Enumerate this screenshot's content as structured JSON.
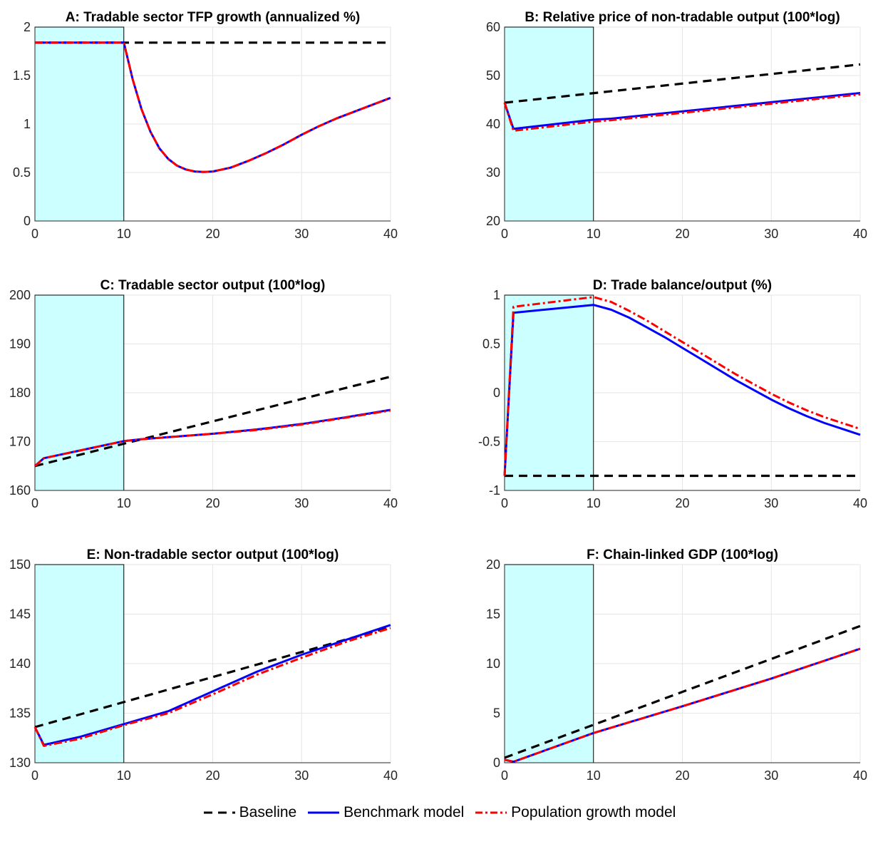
{
  "chart_data": [
    {
      "type": "line",
      "title": "A: Tradable sector TFP growth (annualized %)",
      "xlim": [
        0,
        40
      ],
      "ylim": [
        0,
        2
      ],
      "xticks": [
        "0",
        "10",
        "20",
        "30",
        "40"
      ],
      "yticks": [
        "0",
        "0.5",
        "1",
        "1.5",
        "2"
      ],
      "grid": true,
      "shaded_region": [
        0,
        10
      ],
      "series": [
        {
          "name": "Baseline",
          "x": [
            0,
            40
          ],
          "values": [
            1.84,
            1.84
          ]
        },
        {
          "name": "Benchmark model",
          "x": [
            0,
            10,
            11,
            12,
            13,
            14,
            15,
            16,
            17,
            18,
            19,
            20,
            22,
            24,
            26,
            28,
            30,
            32,
            34,
            36,
            38,
            40
          ],
          "values": [
            1.84,
            1.84,
            1.46,
            1.15,
            0.92,
            0.75,
            0.64,
            0.57,
            0.53,
            0.51,
            0.505,
            0.51,
            0.55,
            0.62,
            0.7,
            0.79,
            0.89,
            0.98,
            1.06,
            1.13,
            1.2,
            1.27
          ]
        },
        {
          "name": "Population growth model",
          "x": [
            0,
            10,
            11,
            12,
            13,
            14,
            15,
            16,
            17,
            18,
            19,
            20,
            22,
            24,
            26,
            28,
            30,
            32,
            34,
            36,
            38,
            40
          ],
          "values": [
            1.84,
            1.84,
            1.46,
            1.15,
            0.92,
            0.75,
            0.64,
            0.57,
            0.53,
            0.51,
            0.505,
            0.51,
            0.55,
            0.62,
            0.7,
            0.79,
            0.89,
            0.98,
            1.06,
            1.13,
            1.2,
            1.27
          ]
        }
      ]
    },
    {
      "type": "line",
      "title": "B: Relative price of non-tradable output (100*log)",
      "xlim": [
        0,
        40
      ],
      "ylim": [
        20,
        60
      ],
      "xticks": [
        "0",
        "10",
        "20",
        "30",
        "40"
      ],
      "yticks": [
        "20",
        "30",
        "40",
        "50",
        "60"
      ],
      "grid": true,
      "shaded_region": [
        0,
        10
      ],
      "series": [
        {
          "name": "Baseline",
          "x": [
            0,
            40
          ],
          "values": [
            44.4,
            52.3
          ]
        },
        {
          "name": "Benchmark model",
          "x": [
            0,
            1,
            10,
            12,
            40
          ],
          "values": [
            44.4,
            39.0,
            40.9,
            41.1,
            46.4
          ]
        },
        {
          "name": "Population growth model",
          "x": [
            0,
            1,
            10,
            12,
            40
          ],
          "values": [
            44.4,
            38.6,
            40.5,
            40.8,
            46.1
          ]
        }
      ]
    },
    {
      "type": "line",
      "title": "C: Tradable sector output (100*log)",
      "xlim": [
        0,
        40
      ],
      "ylim": [
        160,
        200
      ],
      "xticks": [
        "0",
        "10",
        "20",
        "30",
        "40"
      ],
      "yticks": [
        "160",
        "170",
        "180",
        "190",
        "200"
      ],
      "grid": true,
      "shaded_region": [
        0,
        10
      ],
      "series": [
        {
          "name": "Baseline",
          "x": [
            0,
            40
          ],
          "values": [
            165.0,
            183.3
          ]
        },
        {
          "name": "Benchmark model",
          "x": [
            0,
            1,
            10,
            12,
            15,
            20,
            25,
            30,
            35,
            40
          ],
          "values": [
            165.0,
            166.6,
            170.1,
            170.5,
            170.9,
            171.6,
            172.5,
            173.6,
            175.0,
            176.5
          ]
        },
        {
          "name": "Population growth model",
          "x": [
            0,
            1,
            10,
            12,
            15,
            20,
            25,
            30,
            35,
            40
          ],
          "values": [
            165.0,
            166.6,
            170.1,
            170.5,
            170.9,
            171.6,
            172.4,
            173.5,
            174.9,
            176.4
          ]
        }
      ]
    },
    {
      "type": "line",
      "title": "D: Trade balance/output (%)",
      "xlim": [
        0,
        40
      ],
      "ylim": [
        -1,
        1
      ],
      "xticks": [
        "0",
        "10",
        "20",
        "30",
        "40"
      ],
      "yticks": [
        "-1",
        "-0.5",
        "0",
        "0.5",
        "1"
      ],
      "grid": true,
      "shaded_region": [
        0,
        10
      ],
      "series": [
        {
          "name": "Baseline",
          "x": [
            0,
            40
          ],
          "values": [
            -0.85,
            -0.85
          ]
        },
        {
          "name": "Benchmark model",
          "x": [
            0,
            1,
            10,
            12,
            14,
            16,
            18,
            20,
            22,
            24,
            26,
            28,
            30,
            32,
            34,
            36,
            38,
            40
          ],
          "values": [
            -0.85,
            0.82,
            0.9,
            0.85,
            0.77,
            0.67,
            0.57,
            0.46,
            0.35,
            0.24,
            0.13,
            0.03,
            -0.07,
            -0.16,
            -0.24,
            -0.31,
            -0.37,
            -0.43
          ]
        },
        {
          "name": "Population growth model",
          "x": [
            0,
            1,
            10,
            12,
            14,
            16,
            18,
            20,
            22,
            24,
            26,
            28,
            30,
            32,
            34,
            36,
            38,
            40
          ],
          "values": [
            -0.85,
            0.88,
            0.98,
            0.93,
            0.84,
            0.74,
            0.63,
            0.52,
            0.41,
            0.3,
            0.19,
            0.09,
            -0.01,
            -0.1,
            -0.18,
            -0.25,
            -0.31,
            -0.37
          ]
        }
      ]
    },
    {
      "type": "line",
      "title": "E: Non-tradable sector output (100*log)",
      "xlim": [
        0,
        40
      ],
      "ylim": [
        130,
        150
      ],
      "xticks": [
        "0",
        "10",
        "20",
        "30",
        "40"
      ],
      "yticks": [
        "130",
        "135",
        "140",
        "145",
        "150"
      ],
      "grid": true,
      "shaded_region": [
        0,
        10
      ],
      "series": [
        {
          "name": "Baseline",
          "x": [
            0,
            40
          ],
          "values": [
            133.6,
            143.7
          ]
        },
        {
          "name": "Benchmark model",
          "x": [
            0,
            1,
            5,
            10,
            15,
            20,
            25,
            30,
            35,
            40
          ],
          "values": [
            133.6,
            131.8,
            132.6,
            133.9,
            135.2,
            137.2,
            139.2,
            140.9,
            142.4,
            143.9
          ]
        },
        {
          "name": "Population growth model",
          "x": [
            0,
            1,
            5,
            10,
            15,
            20,
            25,
            30,
            35,
            40
          ],
          "values": [
            133.6,
            131.7,
            132.4,
            133.8,
            135.0,
            136.9,
            138.9,
            140.6,
            142.2,
            143.6
          ]
        }
      ]
    },
    {
      "type": "line",
      "title": "F: Chain-linked GDP (100*log)",
      "xlim": [
        0,
        40
      ],
      "ylim": [
        0,
        20
      ],
      "xticks": [
        "0",
        "10",
        "20",
        "30",
        "40"
      ],
      "yticks": [
        "0",
        "5",
        "10",
        "15",
        "20"
      ],
      "grid": true,
      "shaded_region": [
        0,
        10
      ],
      "series": [
        {
          "name": "Baseline",
          "x": [
            0,
            40
          ],
          "values": [
            0.5,
            13.8
          ]
        },
        {
          "name": "Benchmark model",
          "x": [
            0,
            1,
            10,
            20,
            30,
            40
          ],
          "values": [
            0.3,
            0.1,
            3.0,
            5.7,
            8.5,
            11.5
          ]
        },
        {
          "name": "Population growth model",
          "x": [
            0,
            1,
            10,
            20,
            30,
            40
          ],
          "values": [
            0.3,
            0.1,
            3.0,
            5.7,
            8.5,
            11.5
          ]
        }
      ]
    }
  ],
  "styles": {
    "shade_color": "#ccffff",
    "baseline_color": "#000000",
    "benchmark_color": "#0000ff",
    "population_color": "#ff0000",
    "grid_color": "#e6e6e6"
  },
  "legend": {
    "placement": "bottom-center",
    "items": [
      {
        "label": "Baseline",
        "style": "dashed",
        "color": "#000000"
      },
      {
        "label": "Benchmark model",
        "style": "solid",
        "color": "#0000ff"
      },
      {
        "label": "Population growth model",
        "style": "dash-dot",
        "color": "#ff0000"
      }
    ]
  }
}
